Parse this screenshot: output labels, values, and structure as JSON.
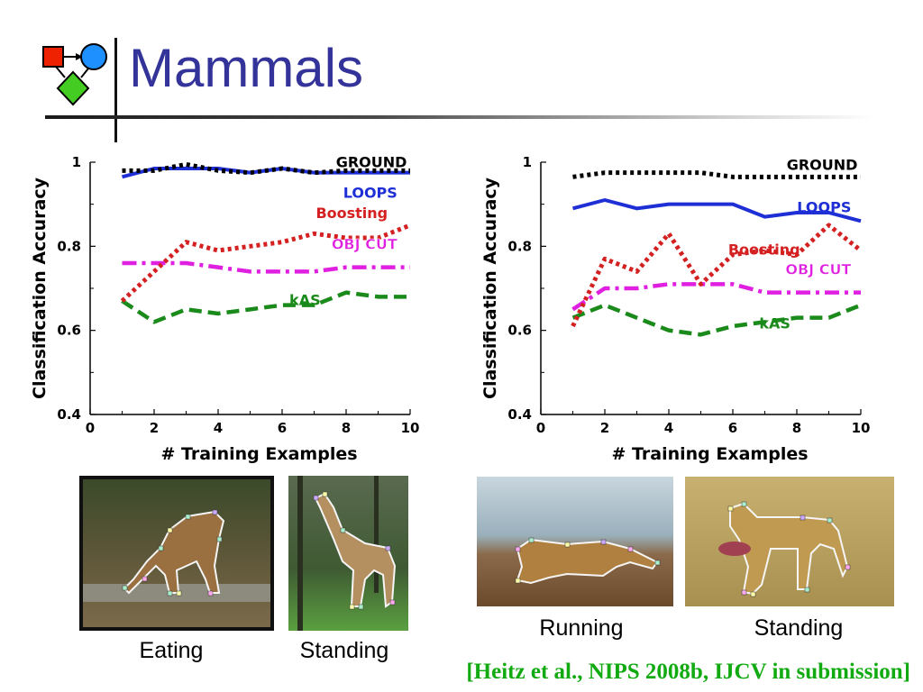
{
  "slide": {
    "title": "Mammals",
    "citation": "[Heitz et al., NIPS 2008b, IJCV in submission]"
  },
  "images": [
    {
      "caption": "Eating",
      "subject": "giraffe"
    },
    {
      "caption": "Standing",
      "subject": "giraffe"
    },
    {
      "caption": "Running",
      "subject": "cheetah"
    },
    {
      "caption": "Standing",
      "subject": "cheetah"
    }
  ],
  "chart_data": [
    {
      "type": "line",
      "title": "",
      "xlabel": "# Training Examples",
      "ylabel": "Classification Accuracy",
      "xlim": [
        0,
        10
      ],
      "ylim": [
        0.4,
        1
      ],
      "xticks": [
        0,
        2,
        4,
        6,
        8,
        10
      ],
      "yticks": [
        0.4,
        0.6,
        0.8,
        1
      ],
      "ytick_labels": [
        "0.4",
        "0.6",
        "0.8",
        "1"
      ],
      "grid": false,
      "legend": "inline labels",
      "x": [
        1,
        2,
        3,
        4,
        5,
        6,
        7,
        8,
        9,
        10
      ],
      "series": [
        {
          "name": "GROUND",
          "color": "#000000",
          "style": "dotted",
          "values": [
            0.98,
            0.98,
            0.995,
            0.98,
            0.975,
            0.985,
            0.975,
            0.98,
            0.98,
            0.98
          ]
        },
        {
          "name": "LOOPS",
          "color": "#1f2fd6",
          "style": "solid",
          "values": [
            0.965,
            0.985,
            0.985,
            0.985,
            0.975,
            0.985,
            0.975,
            0.975,
            0.975,
            0.975
          ]
        },
        {
          "name": "Boosting",
          "color": "#d42020",
          "style": "dotted",
          "values": [
            0.67,
            0.74,
            0.81,
            0.79,
            0.8,
            0.81,
            0.83,
            0.82,
            0.82,
            0.85
          ]
        },
        {
          "name": "OBJ CUT",
          "color": "#e020e0",
          "style": "dashdot",
          "values": [
            0.76,
            0.76,
            0.76,
            0.75,
            0.74,
            0.74,
            0.74,
            0.75,
            0.75,
            0.75
          ]
        },
        {
          "name": "kAS",
          "color": "#1a8a1a",
          "style": "dashed",
          "values": [
            0.67,
            0.62,
            0.65,
            0.64,
            0.65,
            0.66,
            0.66,
            0.69,
            0.68,
            0.68
          ]
        }
      ]
    },
    {
      "type": "line",
      "title": "",
      "xlabel": "# Training Examples",
      "ylabel": "Classification Accuracy",
      "xlim": [
        0,
        10
      ],
      "ylim": [
        0.4,
        1
      ],
      "xticks": [
        0,
        2,
        4,
        6,
        8,
        10
      ],
      "yticks": [
        0.4,
        0.6,
        0.8,
        1
      ],
      "ytick_labels": [
        "0.4",
        "0.6",
        "0.8",
        "1"
      ],
      "grid": false,
      "legend": "inline labels",
      "x": [
        1,
        2,
        3,
        4,
        5,
        6,
        7,
        8,
        9,
        10
      ],
      "series": [
        {
          "name": "GROUND",
          "color": "#000000",
          "style": "dotted",
          "values": [
            0.965,
            0.975,
            0.975,
            0.975,
            0.975,
            0.965,
            0.965,
            0.965,
            0.965,
            0.965
          ]
        },
        {
          "name": "LOOPS",
          "color": "#1f2fd6",
          "style": "solid",
          "values": [
            0.89,
            0.91,
            0.89,
            0.9,
            0.9,
            0.9,
            0.87,
            0.88,
            0.88,
            0.86
          ]
        },
        {
          "name": "Boosting",
          "color": "#d42020",
          "style": "dotted",
          "values": [
            0.61,
            0.77,
            0.74,
            0.83,
            0.71,
            0.78,
            0.79,
            0.78,
            0.85,
            0.79
          ]
        },
        {
          "name": "OBJ CUT",
          "color": "#e020e0",
          "style": "dashdot",
          "values": [
            0.65,
            0.7,
            0.7,
            0.71,
            0.71,
            0.71,
            0.69,
            0.69,
            0.69,
            0.69
          ]
        },
        {
          "name": "kAS",
          "color": "#1a8a1a",
          "style": "dashed",
          "values": [
            0.63,
            0.66,
            0.63,
            0.6,
            0.59,
            0.61,
            0.62,
            0.63,
            0.63,
            0.66
          ]
        }
      ]
    }
  ]
}
